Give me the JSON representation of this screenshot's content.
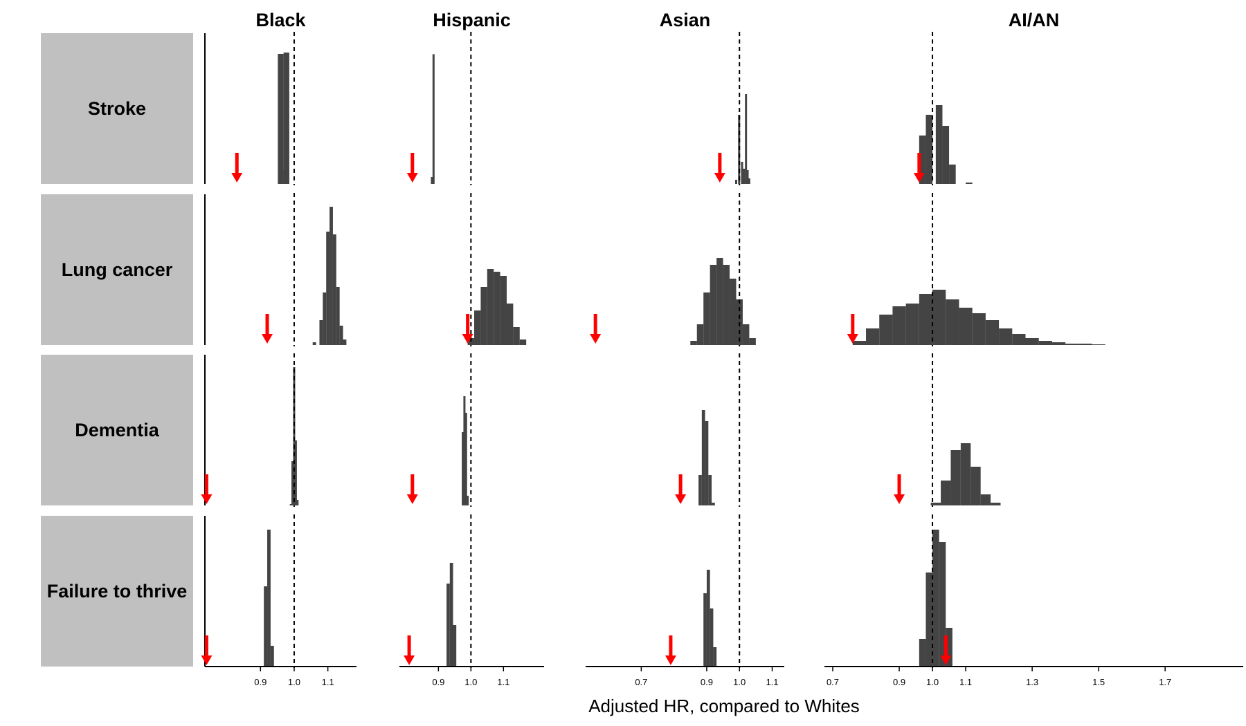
{
  "chart_data": {
    "type": "histogram-grid",
    "xlabel": "Adjusted HR, compared to Whites",
    "reference_line": 1.0,
    "colors": {
      "bars": "#444444",
      "marker": "#ff0000",
      "strip": "#c0c0c0",
      "reference": "#000000"
    },
    "columns": [
      {
        "key": "black",
        "title": "Black",
        "xlim": [
          0.735,
          1.185
        ],
        "ticks": [
          0.9,
          1.0,
          1.1
        ],
        "tick_labels": [
          "0.9",
          "1.0",
          "1.1"
        ]
      },
      {
        "key": "hispanic",
        "title": "Hispanic",
        "xlim": [
          0.78,
          1.225
        ],
        "ticks": [
          0.9,
          1.0,
          1.1
        ],
        "tick_labels": [
          "0.9",
          "1.0",
          "1.1"
        ]
      },
      {
        "key": "asian",
        "title": "Asian",
        "xlim": [
          0.53,
          1.137
        ],
        "ticks": [
          0.7,
          0.9,
          1.0,
          1.1
        ],
        "tick_labels": [
          "0.7",
          "0.9",
          "1.0",
          "1.1"
        ]
      },
      {
        "key": "aian",
        "title": "AI/AN",
        "xlim": [
          0.675,
          1.935
        ],
        "ticks": [
          0.7,
          0.9,
          1.0,
          1.1,
          1.3,
          1.5,
          1.7
        ],
        "tick_labels": [
          "0.7",
          "0.9",
          "1.0",
          "1.1",
          "1.3",
          "1.5",
          "1.7"
        ]
      }
    ],
    "rows": [
      {
        "key": "stroke",
        "label": "Stroke",
        "panels": [
          {
            "marker": 0.83,
            "bins": [
              [
                0.96,
                0.94
              ],
              [
                0.977,
                0.95
              ],
              [
                0.977,
                0.1
              ]
            ]
          },
          {
            "marker": 0.82,
            "bins": [
              [
                0.885,
                0.938
              ],
              [
                0.88,
                0.05
              ]
            ]
          },
          {
            "marker": 0.94,
            "bins": [
              [
                0.99,
                0.03
              ],
              [
                0.999,
                0.5
              ],
              [
                1.008,
                0.16
              ],
              [
                1.014,
                0.11
              ],
              [
                1.02,
                0.65
              ],
              [
                1.025,
                0.1
              ],
              [
                1.03,
                0.04
              ]
            ]
          },
          {
            "marker": 0.96,
            "bins": [
              [
                0.97,
                0.35
              ],
              [
                0.99,
                0.5
              ],
              [
                1.02,
                0.57
              ],
              [
                1.04,
                0.42
              ],
              [
                1.06,
                0.14
              ],
              [
                1.11,
                0.01
              ]
            ]
          }
        ]
      },
      {
        "key": "lung",
        "label": "Lung cancer",
        "panels": [
          {
            "marker": 0.92,
            "bins": [
              [
                1.06,
                0.02
              ],
              [
                1.08,
                0.18
              ],
              [
                1.09,
                0.38
              ],
              [
                1.1,
                0.82
              ],
              [
                1.11,
                1.0
              ],
              [
                1.12,
                0.8
              ],
              [
                1.13,
                0.42
              ],
              [
                1.14,
                0.14
              ],
              [
                1.15,
                0.04
              ]
            ]
          },
          {
            "marker": 0.99,
            "bins": [
              [
                1.0,
                0.05
              ],
              [
                1.02,
                0.25
              ],
              [
                1.04,
                0.42
              ],
              [
                1.06,
                0.55
              ],
              [
                1.08,
                0.53
              ],
              [
                1.1,
                0.5
              ],
              [
                1.12,
                0.3
              ],
              [
                1.14,
                0.13
              ],
              [
                1.16,
                0.04
              ]
            ]
          },
          {
            "marker": 0.56,
            "bins": [
              [
                0.86,
                0.03
              ],
              [
                0.88,
                0.15
              ],
              [
                0.9,
                0.38
              ],
              [
                0.92,
                0.58
              ],
              [
                0.94,
                0.63
              ],
              [
                0.96,
                0.58
              ],
              [
                0.98,
                0.48
              ],
              [
                1.0,
                0.33
              ],
              [
                1.02,
                0.15
              ],
              [
                1.04,
                0.05
              ]
            ]
          },
          {
            "marker": 0.76,
            "bins": [
              [
                0.78,
                0.03
              ],
              [
                0.82,
                0.12
              ],
              [
                0.86,
                0.22
              ],
              [
                0.9,
                0.28
              ],
              [
                0.94,
                0.3
              ],
              [
                0.98,
                0.37
              ],
              [
                1.02,
                0.4
              ],
              [
                1.06,
                0.33
              ],
              [
                1.1,
                0.27
              ],
              [
                1.14,
                0.23
              ],
              [
                1.18,
                0.18
              ],
              [
                1.22,
                0.12
              ],
              [
                1.26,
                0.08
              ],
              [
                1.3,
                0.05
              ],
              [
                1.34,
                0.03
              ],
              [
                1.38,
                0.02
              ],
              [
                1.42,
                0.01
              ],
              [
                1.46,
                0.01
              ],
              [
                1.5,
                0.005
              ]
            ]
          }
        ]
      },
      {
        "key": "dementia",
        "label": "Dementia",
        "panels": [
          {
            "marker": 0.74,
            "bins": [
              [
                0.99,
                0.01
              ],
              [
                0.995,
                0.32
              ],
              [
                1.0,
                1.0
              ],
              [
                1.005,
                0.47
              ],
              [
                1.01,
                0.04
              ]
            ]
          },
          {
            "marker": 0.82,
            "bins": [
              [
                0.975,
                0.53
              ],
              [
                0.98,
                0.79
              ],
              [
                0.985,
                0.67
              ],
              [
                0.99,
                0.07
              ]
            ]
          },
          {
            "marker": 0.82,
            "bins": [
              [
                0.88,
                0.22
              ],
              [
                0.89,
                0.69
              ],
              [
                0.9,
                0.61
              ],
              [
                0.91,
                0.22
              ],
              [
                0.92,
                0.02
              ]
            ]
          },
          {
            "marker": 0.9,
            "bins": [
              [
                1.01,
                0.02
              ],
              [
                1.04,
                0.18
              ],
              [
                1.07,
                0.4
              ],
              [
                1.1,
                0.45
              ],
              [
                1.13,
                0.28
              ],
              [
                1.16,
                0.08
              ],
              [
                1.19,
                0.02
              ]
            ]
          }
        ]
      },
      {
        "key": "ftt",
        "label": "Failure to thrive",
        "panels": [
          {
            "marker": 0.74,
            "bins": [
              [
                0.915,
                0.58
              ],
              [
                0.925,
                0.99
              ],
              [
                0.935,
                0.15
              ]
            ]
          },
          {
            "marker": 0.81,
            "bins": [
              [
                0.93,
                0.6
              ],
              [
                0.94,
                0.75
              ],
              [
                0.95,
                0.3
              ]
            ]
          },
          {
            "marker": 0.79,
            "bins": [
              [
                0.895,
                0.53
              ],
              [
                0.905,
                0.7
              ],
              [
                0.915,
                0.42
              ],
              [
                0.925,
                0.14
              ]
            ]
          },
          {
            "marker": 1.04,
            "bins": [
              [
                0.97,
                0.2
              ],
              [
                0.99,
                0.68
              ],
              [
                1.01,
                0.99
              ],
              [
                1.03,
                0.9
              ],
              [
                1.05,
                0.28
              ]
            ]
          }
        ]
      }
    ]
  }
}
